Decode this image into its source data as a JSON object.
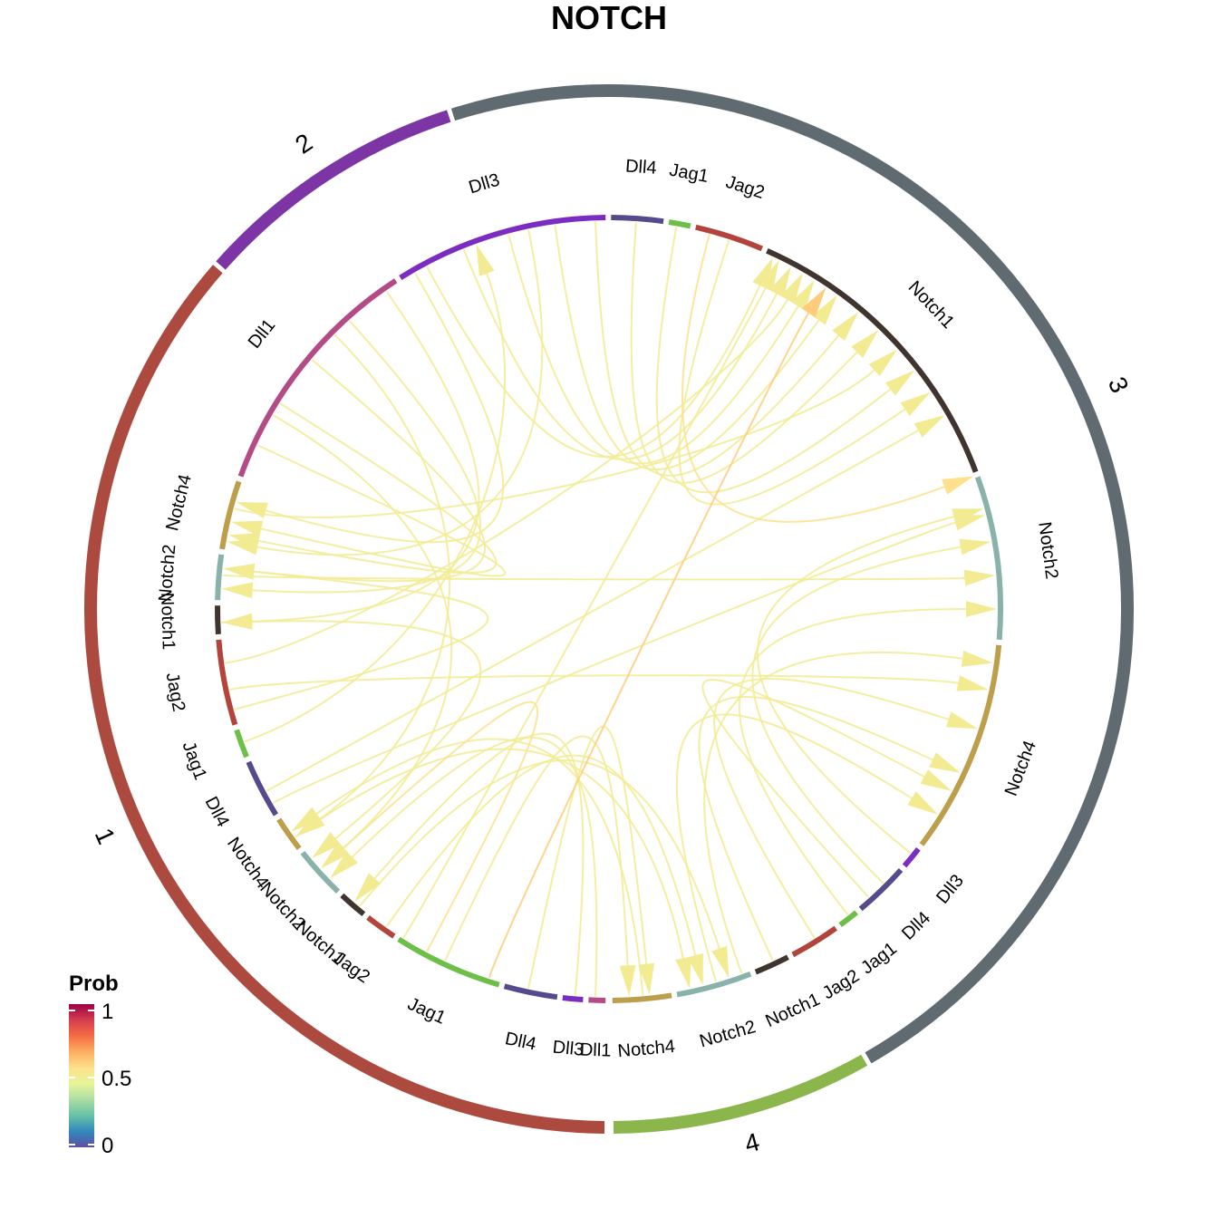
{
  "chart_data": {
    "type": "chord",
    "title": "NOTCH",
    "legend": {
      "title": "Prob",
      "ticks": [
        "1",
        "0.5",
        "0"
      ],
      "range": [
        0,
        1
      ],
      "colors": [
        "#5E4FA2",
        "#3288BD",
        "#66C2A5",
        "#ABDDA4",
        "#E6F598",
        "#FEE08B",
        "#FDAE61",
        "#F46D43",
        "#D53E4F",
        "#9E0142"
      ],
      "placement": "bottom-left"
    },
    "groups": [
      {
        "name": "1",
        "color": "#AC4A3F",
        "start": 90.5,
        "end": 221.0
      },
      {
        "name": "2",
        "color": "#7D35A6",
        "start": 221.5,
        "end": 252.0
      },
      {
        "name": "3",
        "color": "#5F6A71",
        "start": 252.5,
        "end": 420.0
      },
      {
        "name": "4",
        "color": "#8AB64C",
        "start": 420.5,
        "end": 449.5
      }
    ],
    "sectors": [
      {
        "label": "Dll1",
        "color": "#B44A86",
        "start": 90.5,
        "end": 93.0
      },
      {
        "label": "Dll3",
        "color": "#7A2DC0",
        "start": 93.8,
        "end": 96.8
      },
      {
        "label": "Dll4",
        "color": "#564A8C",
        "start": 97.6,
        "end": 105.5
      },
      {
        "label": "Jag1",
        "color": "#6EBF47",
        "start": 106.3,
        "end": 122.5
      },
      {
        "label": "Jag2",
        "color": "#B3443B",
        "start": 123.3,
        "end": 128.0
      },
      {
        "label": "Notch1",
        "color": "#3F342E",
        "start": 128.8,
        "end": 133.0
      },
      {
        "label": "Notch2",
        "color": "#88B2AA",
        "start": 133.8,
        "end": 141.5
      },
      {
        "label": "Notch4",
        "color": "#BC9E4B",
        "start": 142.3,
        "end": 147.5
      },
      {
        "label": "Dll4",
        "color": "#564A8C",
        "start": 148.3,
        "end": 157.0
      },
      {
        "label": "Jag1",
        "color": "#6EBF47",
        "start": 157.8,
        "end": 162.0
      },
      {
        "label": "Jag2",
        "color": "#B3443B",
        "start": 162.8,
        "end": 175.5
      },
      {
        "label": "Notch1",
        "color": "#3F342E",
        "start": 176.3,
        "end": 180.5
      },
      {
        "label": "Notch2",
        "color": "#88B2AA",
        "start": 181.3,
        "end": 188.0
      },
      {
        "label": "Notch4",
        "color": "#BC9E4B",
        "start": 188.8,
        "end": 199.0
      },
      {
        "label": "Dll1",
        "color": "#B44A86",
        "start": 199.8,
        "end": 237.0
      },
      {
        "label": "Dll3",
        "color": "#7A2DC0",
        "start": 237.8,
        "end": 269.5
      },
      {
        "label": "Dll4",
        "color": "#564A8C",
        "start": 270.3,
        "end": 278.0
      },
      {
        "label": "Jag1",
        "color": "#6EBF47",
        "start": 278.8,
        "end": 282.0
      },
      {
        "label": "Jag2",
        "color": "#B3443B",
        "start": 282.8,
        "end": 293.0
      },
      {
        "label": "Notch1",
        "color": "#3F342E",
        "start": 293.8,
        "end": 339.5
      },
      {
        "label": "Notch2",
        "color": "#88B2AA",
        "start": 340.3,
        "end": 364.5
      },
      {
        "label": "Notch4",
        "color": "#BC9E4B",
        "start": 365.3,
        "end": 397.0
      },
      {
        "label": "Dll3",
        "color": "#7A2DC0",
        "start": 397.8,
        "end": 401.0
      },
      {
        "label": "Dll4",
        "color": "#564A8C",
        "start": 401.8,
        "end": 410.0
      },
      {
        "label": "Jag1",
        "color": "#6EBF47",
        "start": 410.8,
        "end": 413.8
      },
      {
        "label": "Jag2",
        "color": "#B3443B",
        "start": 414.6,
        "end": 422.0
      },
      {
        "label": "Notch1",
        "color": "#3F342E",
        "start": 422.8,
        "end": 428.0
      },
      {
        "label": "Notch2",
        "color": "#88B2AA",
        "start": 428.8,
        "end": 440.0
      },
      {
        "label": "Notch4",
        "color": "#BC9E4B",
        "start": 440.8,
        "end": 449.5
      }
    ],
    "links": [
      {
        "from": 102,
        "to": 444,
        "prob": 0.5
      },
      {
        "from": 115,
        "to": 447,
        "prob": 0.5
      },
      {
        "from": 125,
        "to": 436,
        "prob": 0.5
      },
      {
        "from": 130,
        "to": 432,
        "prob": 0.5
      },
      {
        "from": 144,
        "to": 438,
        "prob": 0.5
      },
      {
        "from": 152,
        "to": 330,
        "prob": 0.5
      },
      {
        "from": 160,
        "to": 250,
        "prob": 0.5
      },
      {
        "from": 168,
        "to": 372,
        "prob": 0.5
      },
      {
        "from": 172,
        "to": 300,
        "prob": 0.5
      },
      {
        "from": 178,
        "to": 140,
        "prob": 0.5
      },
      {
        "from": 185,
        "to": 355,
        "prob": 0.5
      },
      {
        "from": 195,
        "to": 318,
        "prob": 0.5
      },
      {
        "from": 205,
        "to": 193,
        "prob": 0.5
      },
      {
        "from": 212,
        "to": 191,
        "prob": 0.5
      },
      {
        "from": 220,
        "to": 186,
        "prob": 0.5
      },
      {
        "from": 228,
        "to": 183,
        "prob": 0.5
      },
      {
        "from": 235,
        "to": 178,
        "prob": 0.5
      },
      {
        "from": 242,
        "to": 295,
        "prob": 0.5
      },
      {
        "from": 248,
        "to": 298,
        "prob": 0.5
      },
      {
        "from": 255,
        "to": 302,
        "prob": 0.5
      },
      {
        "from": 262,
        "to": 306,
        "prob": 0.5
      },
      {
        "from": 268,
        "to": 310,
        "prob": 0.5
      },
      {
        "from": 274,
        "to": 314,
        "prob": 0.5
      },
      {
        "from": 280,
        "to": 322,
        "prob": 0.5
      },
      {
        "from": 288,
        "to": 326,
        "prob": 0.5
      },
      {
        "from": 399,
        "to": 345,
        "prob": 0.5
      },
      {
        "from": 405,
        "to": 350,
        "prob": 0.5
      },
      {
        "from": 412,
        "to": 360,
        "prob": 0.5
      },
      {
        "from": 418,
        "to": 378,
        "prob": 0.5
      },
      {
        "from": 425,
        "to": 385,
        "prob": 0.5
      },
      {
        "from": 434,
        "to": 392,
        "prob": 0.5
      },
      {
        "from": 445,
        "to": 145,
        "prob": 0.5
      },
      {
        "from": 92,
        "to": 136,
        "prob": 0.5
      },
      {
        "from": 95,
        "to": 131,
        "prob": 0.5
      },
      {
        "from": 118,
        "to": 138,
        "prob": 0.55
      },
      {
        "from": 165,
        "to": 186,
        "prob": 0.5
      },
      {
        "from": 210,
        "to": 138,
        "prob": 0.5
      },
      {
        "from": 225,
        "to": 144,
        "prob": 0.5
      },
      {
        "from": 240,
        "to": 196,
        "prob": 0.5
      },
      {
        "from": 258,
        "to": 190,
        "prob": 0.5
      },
      {
        "from": 285,
        "to": 340,
        "prob": 0.55
      },
      {
        "from": 408,
        "to": 388,
        "prob": 0.5
      },
      {
        "from": 430,
        "to": 368,
        "prob": 0.5
      },
      {
        "from": 150,
        "to": 346,
        "prob": 0.5
      },
      {
        "from": 108,
        "to": 304,
        "prob": 0.6
      },
      {
        "from": 122,
        "to": 296,
        "prob": 0.5
      }
    ]
  }
}
